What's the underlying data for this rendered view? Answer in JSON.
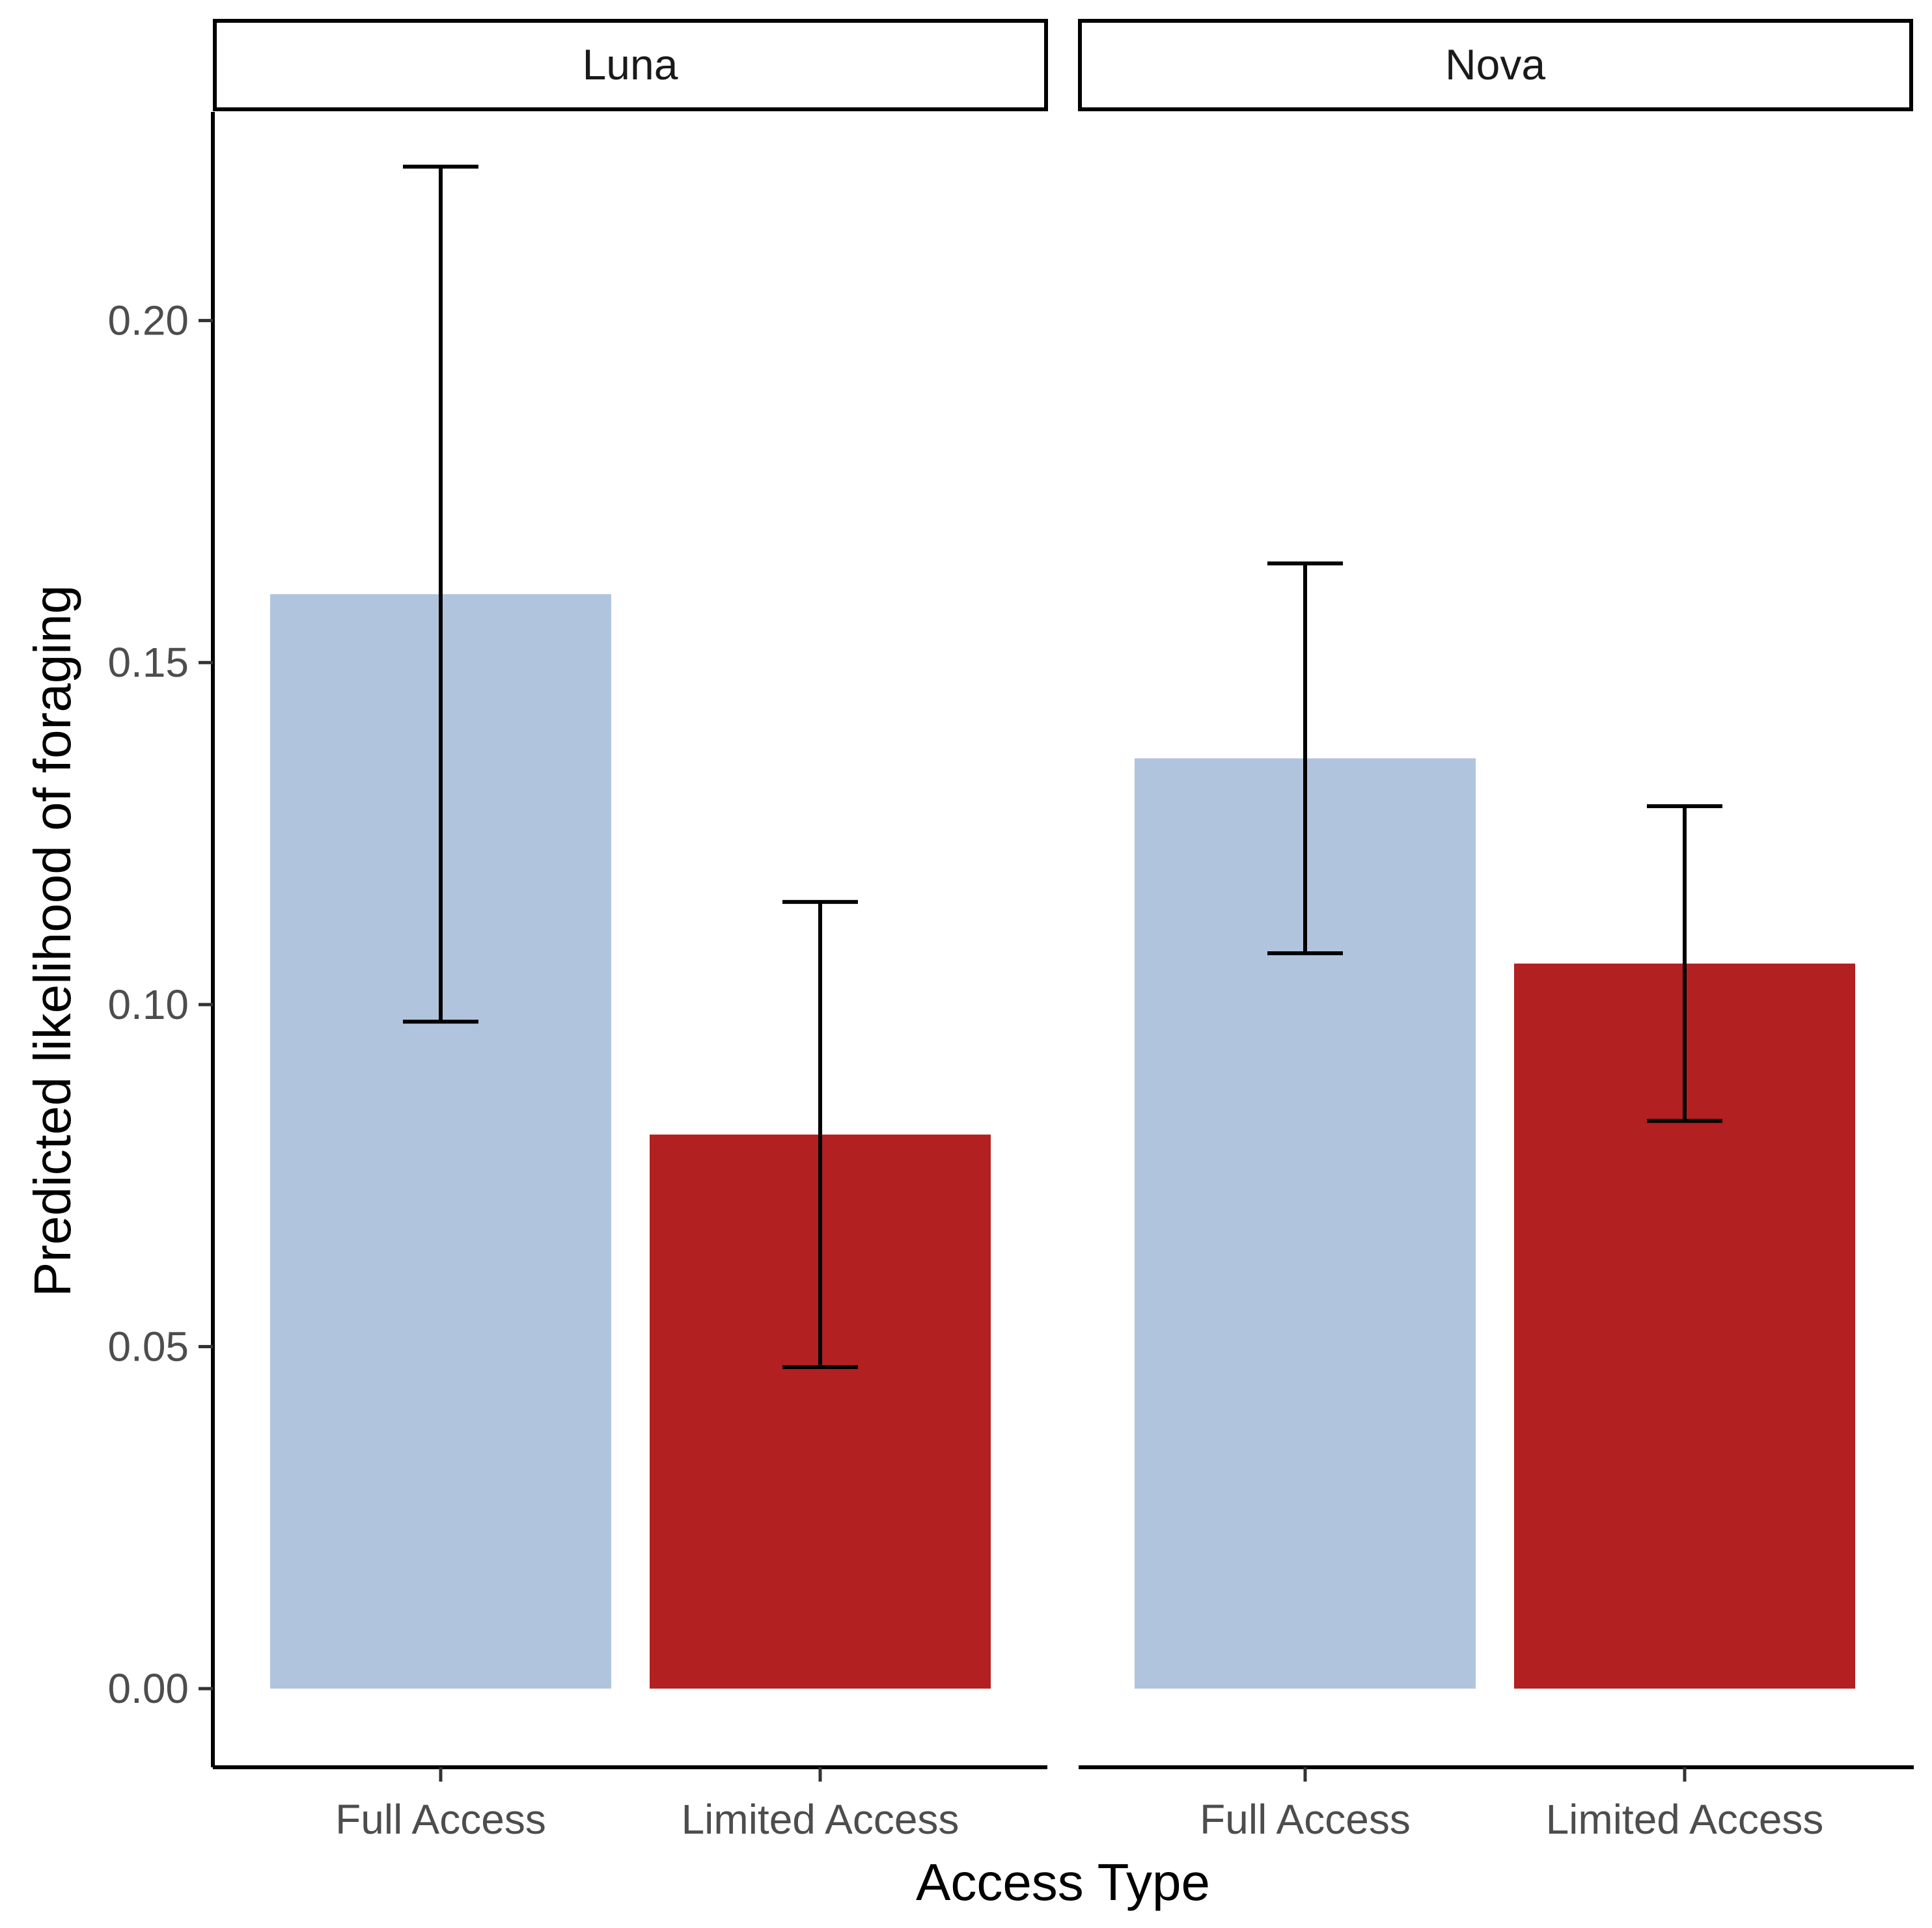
{
  "chart_data": {
    "type": "bar",
    "title": "",
    "xlabel": "Access Type",
    "ylabel": "Predicted likelihood of foraging",
    "ylim": [
      -0.0115,
      0.2305
    ],
    "yticks": [
      "0.00",
      "0.05",
      "0.10",
      "0.15",
      "0.20"
    ],
    "ytick_values": [
      0.0,
      0.05,
      0.1,
      0.15,
      0.2
    ],
    "categories": [
      "Full Access",
      "Limited Access"
    ],
    "colors": {
      "Full Access": "#b0c4de",
      "Limited Access": "#b22022"
    },
    "panels": [
      {
        "name": "Luna",
        "bars": [
          {
            "category": "Full Access",
            "value": 0.16,
            "lower": 0.0975,
            "upper": 0.2225
          },
          {
            "category": "Limited Access",
            "value": 0.081,
            "lower": 0.047,
            "upper": 0.115
          }
        ]
      },
      {
        "name": "Nova",
        "bars": [
          {
            "category": "Full Access",
            "value": 0.136,
            "lower": 0.1075,
            "upper": 0.1645
          },
          {
            "category": "Limited Access",
            "value": 0.106,
            "lower": 0.083,
            "upper": 0.129
          }
        ]
      }
    ],
    "grid": false,
    "legend": "none"
  }
}
